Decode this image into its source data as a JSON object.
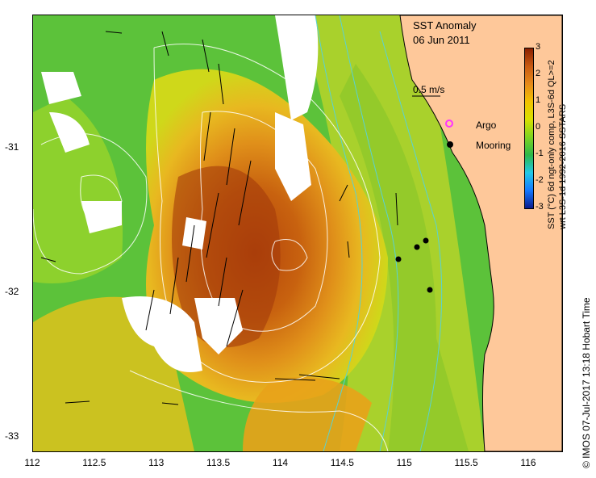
{
  "title": {
    "line1": "SST Anomaly",
    "line2": "06 Jun 2011"
  },
  "scale_arrow_label": "0.5 m/s",
  "legend": {
    "argo": {
      "label": "Argo",
      "color": "#ff33ff"
    },
    "mooring": {
      "label": "Mooring",
      "color": "#000000"
    }
  },
  "colorbar": {
    "ticks": [
      "3",
      "2",
      "1",
      "0",
      "-1",
      "-2",
      "-3"
    ],
    "range": [
      -3,
      3
    ],
    "title_line1": "SST (°C) 6d ngt-only comp, L3S-6d QL>=2",
    "title_line2": "wrt L3S-1d 1992-2016 SSTARS",
    "colors": [
      "#0a1a8c",
      "#1478ff",
      "#22c8e6",
      "#2db84a",
      "#7ed321",
      "#d8e000",
      "#f2c200",
      "#e68a1a",
      "#c85a12",
      "#8a2000"
    ]
  },
  "axes": {
    "x_ticks": [
      "112",
      "112.5",
      "113",
      "113.5",
      "114",
      "114.5",
      "115",
      "115.5",
      "116"
    ],
    "y_ticks": [
      "-31",
      "-32",
      "-33"
    ],
    "xlim": [
      112,
      116.3
    ],
    "ylim": [
      -33.1,
      -30.1
    ]
  },
  "moorings": [
    {
      "lon": 114.97,
      "lat": -31.75
    },
    {
      "lon": 115.15,
      "lat": -31.69
    },
    {
      "lon": 115.22,
      "lat": -31.63
    },
    {
      "lon": 115.25,
      "lat": -31.98
    }
  ],
  "colors": {
    "land": "#fec89a",
    "coast_outline": "#000000",
    "contour": "#ffffff",
    "bathy": "#5ad2d2"
  },
  "credit": "© IMOS 07-Jul-2017 13:18 Hobart Time"
}
